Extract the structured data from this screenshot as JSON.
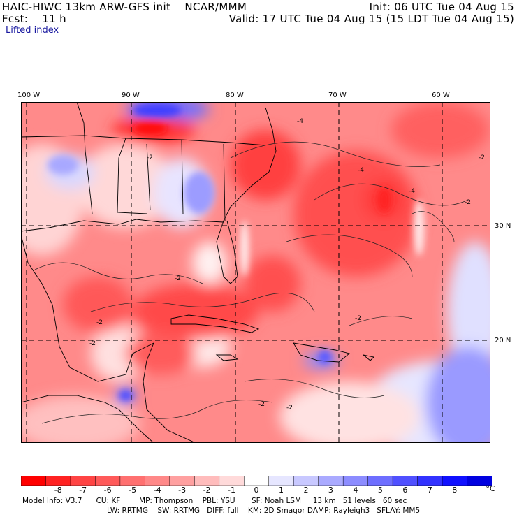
{
  "header": {
    "title": "HAIC-HIWC 13km ARW-GFS init    NCAR/MMM",
    "init": "Init: 06 UTC Tue 04 Aug 15",
    "fcst": "Fcst:    11 h",
    "valid": "Valid: 17 UTC Tue 04 Aug 15 (15 LDT Tue 04 Aug 15)",
    "field": "Lifted index"
  },
  "map": {
    "lon_labels": [
      "100 W",
      "90 W",
      "80 W",
      "70 W",
      "60 W"
    ],
    "lat_labels": [
      "30 N",
      "20 N"
    ],
    "contour_labels": [
      "-2",
      "-4"
    ]
  },
  "colorbar": {
    "ticks": [
      "-8",
      "-7",
      "-6",
      "-5",
      "-4",
      "-3",
      "-2",
      "-1",
      "0",
      "1",
      "2",
      "3",
      "4",
      "5",
      "6",
      "7",
      "8"
    ],
    "unit": "°C",
    "colors": [
      "#ff0000",
      "#ff2222",
      "#ff4444",
      "#ff5a5a",
      "#ff7070",
      "#ff8888",
      "#ffa0a0",
      "#ffbcbc",
      "#ffdada",
      "#ffffff",
      "#e6e6ff",
      "#c8c8ff",
      "#aaaaff",
      "#8c8cff",
      "#6e6eff",
      "#5050ff",
      "#3232ff",
      "#1010ff",
      "#0000e0"
    ]
  },
  "footer": {
    "line1": "Model Info: V3.7      CU: KF        MP: Thompson    PBL: YSU       SF: Noah LSM     13 km   51 levels   60 sec",
    "line2": "LW: RRTMG    SW: RRTMG   DIFF: full    KM: 2D Smagor DAMP: Rayleigh3   SFLAY: MM5"
  }
}
